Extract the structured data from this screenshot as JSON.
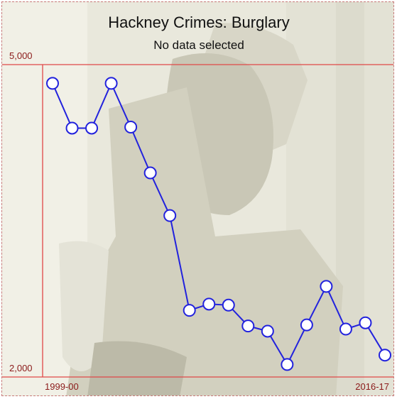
{
  "chart_data": {
    "type": "line",
    "title": "Hackney Crimes: Burglary",
    "subtitle": "No data selected",
    "x_start_label": "1999-00",
    "x_end_label": "2016-17",
    "y_max_label": "5,000",
    "y_min_label": "2,000",
    "ylim": [
      2000,
      5000
    ],
    "grid": false,
    "series": [
      {
        "values": [
          4820,
          4390,
          4390,
          4820,
          4400,
          3960,
          3550,
          2640,
          2700,
          2690,
          2490,
          2440,
          2120,
          2500,
          2870,
          2460,
          2520,
          2210
        ],
        "color": "#2222dd"
      }
    ],
    "colors": {
      "axis": "#e04848",
      "axis_text": "#8b1a1a",
      "line": "#2222dd",
      "marker_fill": "#ffffff"
    }
  }
}
